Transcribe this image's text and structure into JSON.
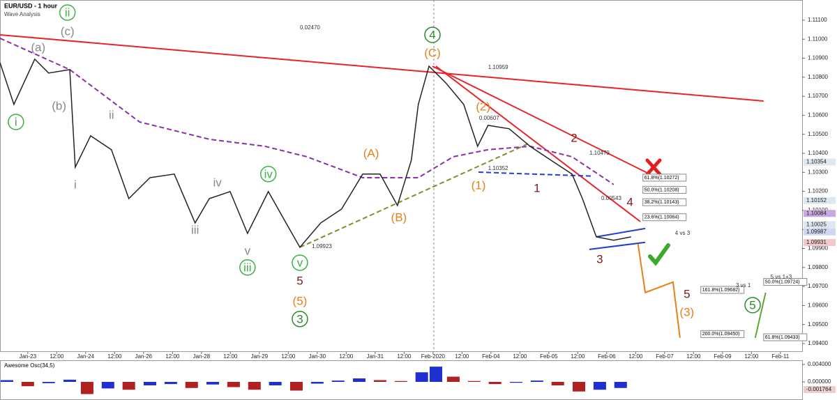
{
  "chart_data": [
    {
      "type": "line",
      "title": "EUR/USD - 1 hour",
      "subtitle": "Wave Analysis",
      "x": [
        -0.96,
        -0.48,
        0.24,
        0.72,
        1.45,
        1.64,
        2.17,
        2.89,
        3.49,
        4.22,
        5.06,
        5.78,
        6.27,
        6.99,
        7.59,
        8.31,
        8.92,
        9.4,
        10.12,
        10.84,
        11.57,
        12.17,
        12.77,
        13.25,
        13.49,
        13.86,
        14.1,
        14.46,
        15.06,
        15.54,
        15.9,
        16.63,
        17.35,
        18.07,
        18.8,
        19.16,
        19.64,
        20.24,
        20.84
      ],
      "series": [
        {
          "color": "#222222",
          "values": [
            1.10877,
            1.10657,
            1.10895,
            1.10822,
            1.1084,
            1.10327,
            1.10492,
            1.10419,
            1.10162,
            1.10272,
            1.10291,
            1.10034,
            1.10162,
            1.10199,
            1.09979,
            1.10199,
            1.10034,
            1.09906,
            1.10034,
            1.10107,
            1.10291,
            1.10291,
            1.10126,
            1.10364,
            1.10657,
            1.10858,
            1.10822,
            1.10767,
            1.10657,
            1.10437,
            1.10547,
            1.10529,
            1.10437,
            1.10364,
            1.10291,
            1.10162,
            1.09961,
            1.09943,
            1.09961
          ]
        }
      ],
      "xlim": [
        -0.96,
        26.75
      ],
      "ylim": [
        1.09356,
        1.11206
      ],
      "xticks": [
        {
          "value": 0,
          "label": "Jan-23"
        },
        {
          "value": 1,
          "label": "12:00"
        },
        {
          "value": 2,
          "label": "Jan-24"
        },
        {
          "value": 3,
          "label": "12:00"
        },
        {
          "value": 4,
          "label": "Jan-26"
        },
        {
          "value": 5,
          "label": "12:00"
        },
        {
          "value": 6,
          "label": "Jan-28"
        },
        {
          "value": 7,
          "label": "12:00"
        },
        {
          "value": 8,
          "label": "Jan-29"
        },
        {
          "value": 9,
          "label": "12:00"
        },
        {
          "value": 10,
          "label": "Jan-30"
        },
        {
          "value": 11,
          "label": "12:00"
        },
        {
          "value": 12,
          "label": "Jan-31"
        },
        {
          "value": 13,
          "label": "12:00"
        },
        {
          "value": 14,
          "label": "Feb-2020"
        },
        {
          "value": 15,
          "label": "12:00"
        },
        {
          "value": 16,
          "label": "Feb-04"
        },
        {
          "value": 17,
          "label": "12:00"
        },
        {
          "value": 18,
          "label": "Feb-05"
        },
        {
          "value": 19,
          "label": "12:00"
        },
        {
          "value": 20,
          "label": "Feb-06"
        },
        {
          "value": 21,
          "label": "12:00"
        },
        {
          "value": 22,
          "label": "Feb-07"
        },
        {
          "value": 23,
          "label": "12:00"
        },
        {
          "value": 24,
          "label": "Feb-09"
        },
        {
          "value": 25,
          "label": "12:00"
        },
        {
          "value": 26,
          "label": "Feb-11"
        }
      ],
      "yticks": [
        {
          "value": 1.111,
          "label": "1.11100"
        },
        {
          "value": 1.11,
          "label": "1.11000"
        },
        {
          "value": 1.109,
          "label": "1.10900"
        },
        {
          "value": 1.108,
          "label": "1.10800"
        },
        {
          "value": 1.107,
          "label": "1.10700"
        },
        {
          "value": 1.106,
          "label": "1.10600"
        },
        {
          "value": 1.105,
          "label": "1.10500"
        },
        {
          "value": 1.104,
          "label": "1.10400"
        },
        {
          "value": 1.103,
          "label": "1.10300"
        },
        {
          "value": 1.102,
          "label": "1.10200"
        },
        {
          "value": 1.101,
          "label": "1.10100"
        },
        {
          "value": 1.1,
          "label": "1.10000"
        },
        {
          "value": 1.099,
          "label": "1.09900"
        },
        {
          "value": 1.098,
          "label": "1.09800"
        },
        {
          "value": 1.097,
          "label": "1.09700"
        },
        {
          "value": 1.096,
          "label": "1.09600"
        },
        {
          "value": 1.095,
          "label": "1.09500"
        },
        {
          "value": 1.094,
          "label": "1.09400"
        }
      ],
      "price_tags": [
        {
          "value": 1.10354,
          "color": "#dfe7ef"
        },
        {
          "value": 1.10152,
          "color": "#dfe7ef"
        },
        {
          "value": 1.10084,
          "color": "#c9a7e0"
        },
        {
          "value": 1.10025,
          "color": "#dfe7ef"
        },
        {
          "value": 1.09987,
          "color": "#cfd8f0"
        },
        {
          "value": 1.09931,
          "color": "#f2c9c9"
        }
      ],
      "lines": [
        {
          "x": [
            -0.96,
            25.42
          ],
          "y": [
            1.11023,
            1.10675
          ],
          "color": "#e8242b",
          "dash": false
        },
        {
          "x": [
            13.98,
            21.88
          ],
          "y": [
            1.10858,
            1.10261
          ],
          "color": "#e8242b",
          "dash": false
        },
        {
          "x": [
            14.1,
            21.16
          ],
          "y": [
            1.10858,
            1.10041
          ],
          "color": "#e8242b",
          "dash": false
        },
        {
          "x": [
            15.57,
            19.52
          ],
          "y": [
            1.10301,
            1.1028
          ],
          "color": "#1f3fd0",
          "dash": true
        },
        {
          "x": [
            9.4,
            17.35
          ],
          "y": [
            1.09906,
            1.10455
          ],
          "color": "#8a8a2a",
          "dash": true
        },
        {
          "x": [
            19.64,
            21.33
          ],
          "y": [
            1.09961,
            1.10005
          ],
          "color": "#1f3fd0",
          "dash": false
        },
        {
          "x": [
            19.4,
            21.33
          ],
          "y": [
            1.09895,
            1.09932
          ],
          "color": "#1f3fd0",
          "dash": false
        },
        {
          "x": [
            21.08,
            21.33,
            22.29,
            22.53
          ],
          "y": [
            1.09924,
            1.09668,
            1.09723,
            1.0943
          ],
          "color": "#e8801a",
          "dash": false
        },
        {
          "x": [
            25.13,
            25.49
          ],
          "y": [
            1.0943,
            1.09668
          ],
          "color": "#5aa82a",
          "dash": false
        },
        {
          "x": [
            -0.96,
            1.45,
            3.86,
            6.27,
            8.19,
            9.64,
            11.57,
            13.49,
            14.7,
            15.9,
            17.35,
            18.8,
            20.24
          ],
          "y": [
            1.11005,
            1.1084,
            1.10565,
            1.10474,
            1.10437,
            1.10382,
            1.10272,
            1.10272,
            1.10382,
            1.10419,
            1.10437,
            1.10382,
            1.10236
          ],
          "color": "#8b2fa8",
          "dash": true
        }
      ],
      "annotations": [
        {
          "text": "ii",
          "x": 1.37,
          "y": 1.1114,
          "color": "#3cb043",
          "circle": true
        },
        {
          "text": "(c)",
          "x": 1.37,
          "y": 1.11041,
          "color": "#888888",
          "circle": false
        },
        {
          "text": "(a)",
          "x": 0.36,
          "y": 1.10957,
          "color": "#888888",
          "circle": false
        },
        {
          "text": "(b)",
          "x": 1.08,
          "y": 1.10649,
          "color": "#888888",
          "circle": false
        },
        {
          "text": "i",
          "x": -0.41,
          "y": 1.10565,
          "color": "#3cb043",
          "circle": true
        },
        {
          "text": "i",
          "x": 1.64,
          "y": 1.10236,
          "color": "#888888",
          "circle": false
        },
        {
          "text": "ii",
          "x": 2.89,
          "y": 1.10602,
          "color": "#888888",
          "circle": false
        },
        {
          "text": "iii",
          "x": 5.78,
          "y": 1.09997,
          "color": "#888888",
          "circle": false
        },
        {
          "text": "iv",
          "x": 6.55,
          "y": 1.10247,
          "color": "#888888",
          "circle": false
        },
        {
          "text": "v",
          "x": 7.59,
          "y": 1.09888,
          "color": "#888888",
          "circle": false
        },
        {
          "text": "iv",
          "x": 8.31,
          "y": 1.10291,
          "color": "#3cb043",
          "circle": true
        },
        {
          "text": "iii",
          "x": 7.59,
          "y": 1.098,
          "color": "#3cb043",
          "circle": true
        },
        {
          "text": "v",
          "x": 9.4,
          "y": 1.09825,
          "color": "#3cb043",
          "circle": true
        },
        {
          "text": "5",
          "x": 9.4,
          "y": 1.0973,
          "color": "#7a1a1a",
          "circle": false
        },
        {
          "text": "(5)",
          "x": 9.4,
          "y": 1.09624,
          "color": "#e8801a",
          "circle": false
        },
        {
          "text": "3",
          "x": 9.4,
          "y": 1.09529,
          "color": "#2a8a2a",
          "circle": true
        },
        {
          "text": "(A)",
          "x": 11.86,
          "y": 1.104,
          "color": "#e8801a",
          "circle": false
        },
        {
          "text": "(B)",
          "x": 12.82,
          "y": 1.10063,
          "color": "#e8801a",
          "circle": false
        },
        {
          "text": "4",
          "x": 13.98,
          "y": 1.11023,
          "color": "#2a8a2a",
          "circle": true
        },
        {
          "text": "(C)",
          "x": 13.98,
          "y": 1.10928,
          "color": "#e8801a",
          "circle": false
        },
        {
          "text": "(2)",
          "x": 15.73,
          "y": 1.10646,
          "color": "#e8801a",
          "circle": false
        },
        {
          "text": "(1)",
          "x": 15.57,
          "y": 1.10232,
          "color": "#e8801a",
          "circle": false
        },
        {
          "text": "1",
          "x": 17.59,
          "y": 1.10217,
          "color": "#7a1a1a",
          "circle": false
        },
        {
          "text": "2",
          "x": 18.87,
          "y": 1.10481,
          "color": "#7a1a1a",
          "circle": false
        },
        {
          "text": "3",
          "x": 19.76,
          "y": 1.09844,
          "color": "#7a1a1a",
          "circle": false
        },
        {
          "text": "4",
          "x": 20.8,
          "y": 1.10144,
          "color": "#7a1a1a",
          "circle": false
        },
        {
          "text": "5",
          "x": 22.77,
          "y": 1.0966,
          "color": "#7a1a1a",
          "circle": false
        },
        {
          "text": "(3)",
          "x": 22.77,
          "y": 1.09565,
          "color": "#e8801a",
          "circle": false
        },
        {
          "text": "5",
          "x": 25.04,
          "y": 1.09602,
          "color": "#2a8a2a",
          "circle": true
        }
      ],
      "notes": [
        {
          "text": "0.02470",
          "x": 9.4,
          "y": 1.1106
        },
        {
          "text": "1.10959",
          "x": 15.9,
          "y": 1.10851
        },
        {
          "text": "0.00607",
          "x": 15.59,
          "y": 1.10584
        },
        {
          "text": "1.10352",
          "x": 15.9,
          "y": 1.1032
        },
        {
          "text": "1.10479",
          "x": 19.4,
          "y": 1.104
        },
        {
          "text": "0.00543",
          "x": 19.81,
          "y": 1.10162
        },
        {
          "text": "1.09923",
          "x": 9.81,
          "y": 1.0991
        },
        {
          "text": "4 vs 3",
          "x": 22.36,
          "y": 1.09979
        },
        {
          "text": "3 vs 1",
          "x": 24.46,
          "y": 1.09704
        },
        {
          "text": "5 vs 1+3",
          "x": 25.66,
          "y": 1.09748
        }
      ],
      "fib_levels": [
        {
          "label": "61.8%(1.10272)",
          "x": 21.25,
          "y": 1.10272
        },
        {
          "label": "50.0%(1.10208)",
          "x": 21.25,
          "y": 1.10208
        },
        {
          "label": "38.2%(1.10143)",
          "x": 21.25,
          "y": 1.10143
        },
        {
          "label": "23.6%(1.10064)",
          "x": 21.25,
          "y": 1.10064
        },
        {
          "label": "161.8%(1.09682)",
          "x": 23.25,
          "y": 1.09682
        },
        {
          "label": "200.0%(1.09450)",
          "x": 23.25,
          "y": 1.0945
        },
        {
          "label": "50.0%(1.09724)",
          "x": 25.42,
          "y": 1.09724
        },
        {
          "label": "61.8%(1.09433)",
          "x": 25.42,
          "y": 1.09433
        }
      ]
    },
    {
      "type": "bar",
      "title": "Awesome Osc(34,5)",
      "x": [
        -0.72,
        0,
        0.72,
        1.45,
        2.05,
        2.77,
        3.49,
        4.22,
        4.94,
        5.66,
        6.39,
        7.11,
        7.83,
        8.55,
        9.28,
        10,
        10.72,
        11.45,
        12.17,
        12.89,
        13.61,
        14.1,
        14.7,
        15.42,
        16.14,
        16.87,
        17.59,
        18.31,
        19.04,
        19.76,
        20.48
      ],
      "values": [
        0.0004,
        -0.001,
        -0.0003,
        0.0005,
        -0.0028,
        -0.0015,
        -0.0018,
        -0.0008,
        -0.0005,
        -0.0014,
        -0.0006,
        -0.0012,
        -0.0018,
        -0.0008,
        -0.002,
        -0.0004,
        0.0003,
        0.0008,
        0.0004,
        0.0002,
        0.0022,
        0.0035,
        0.0012,
        0.0002,
        -0.0005,
        -0.0002,
        0.0003,
        -0.0008,
        -0.0022,
        -0.0018,
        -0.0014
      ],
      "colors": [
        "#2030d0",
        "#b02020"
      ],
      "xlim": [
        -0.96,
        26.75
      ],
      "ylim": [
        -0.00384,
        0.0048
      ],
      "yticks": [
        {
          "value": 0.004,
          "label": "0.004000"
        },
        {
          "value": 0,
          "label": "0.000000"
        }
      ],
      "value_tags": [
        -0.001764
      ]
    }
  ]
}
